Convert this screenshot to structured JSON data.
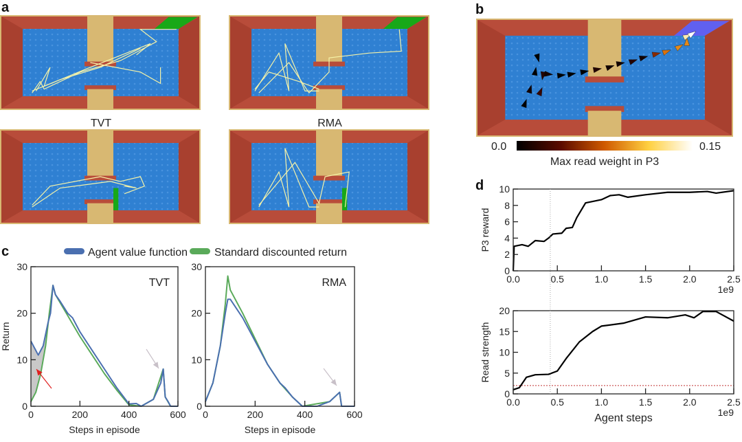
{
  "panel_a": {
    "label": "a",
    "captions": [
      "TVT",
      "RMA"
    ],
    "goal_color": "#18a818"
  },
  "panel_b": {
    "label": "b",
    "colorbar": {
      "min_label": "0.0",
      "max_label": "0.15",
      "label": "Max read weight in P3",
      "colormap": "afmhot"
    },
    "goal_color": "#6060f0"
  },
  "panel_c": {
    "label": "c",
    "legend": [
      {
        "name": "Agent value function",
        "color": "#4a6fb0"
      },
      {
        "name": "Standard discounted return",
        "color": "#5aaa5a"
      }
    ]
  },
  "panel_d": {
    "label": "d"
  },
  "chart_data": [
    {
      "type": "line",
      "panel": "c",
      "annotation": "TVT",
      "xlabel": "Steps in episode",
      "ylabel": "Return",
      "xlim": [
        0,
        600
      ],
      "ylim": [
        0,
        30
      ],
      "xticks": [
        "0",
        "200",
        "400",
        "600"
      ],
      "yticks": [
        "0",
        "10",
        "20",
        "30"
      ],
      "series": [
        {
          "name": "Agent value function",
          "color": "#4a6fb0",
          "x": [
            0,
            10,
            30,
            50,
            70,
            80,
            90,
            100,
            120,
            150,
            170,
            200,
            250,
            300,
            350,
            400,
            430,
            450,
            500,
            530,
            540,
            548,
            560,
            570,
            600
          ],
          "y": [
            14,
            13,
            11,
            13,
            18,
            20,
            26,
            24,
            22.5,
            20,
            19,
            16,
            12,
            8,
            4,
            0.5,
            0.6,
            0,
            1.5,
            5,
            8,
            2,
            1,
            0,
            0
          ]
        },
        {
          "name": "Standard discounted return",
          "color": "#5aaa5a",
          "x": [
            0,
            20,
            40,
            60,
            75,
            90,
            100,
            150,
            200,
            250,
            300,
            350,
            400,
            450,
            500,
            540,
            548,
            570,
            600
          ],
          "y": [
            1,
            3,
            7,
            13,
            20,
            26,
            24,
            19.5,
            15,
            11,
            7,
            3.5,
            0.3,
            0,
            1.5,
            8,
            2,
            0,
            0
          ]
        }
      ]
    },
    {
      "type": "line",
      "panel": "c",
      "annotation": "RMA",
      "xlabel": "Steps in episode",
      "ylabel": "",
      "xlim": [
        0,
        600
      ],
      "ylim": [
        0,
        30
      ],
      "xticks": [
        "0",
        "200",
        "400",
        "600"
      ],
      "yticks": [
        "0",
        "10",
        "20",
        "30"
      ],
      "series": [
        {
          "name": "Agent value function",
          "color": "#4a6fb0",
          "x": [
            0,
            30,
            60,
            80,
            90,
            100,
            150,
            200,
            250,
            300,
            320,
            350,
            390,
            450,
            500,
            540,
            548,
            600
          ],
          "y": [
            1,
            5,
            13,
            20,
            23,
            23,
            19,
            14,
            9,
            5,
            4,
            2,
            0,
            0,
            1,
            3,
            0,
            0
          ]
        },
        {
          "name": "Standard discounted return",
          "color": "#5aaa5a",
          "x": [
            0,
            30,
            60,
            80,
            90,
            100,
            150,
            200,
            250,
            300,
            350,
            390,
            500,
            540,
            548,
            600
          ],
          "y": [
            1,
            5,
            13,
            22,
            28,
            25,
            20,
            14.5,
            9,
            5,
            2,
            0,
            1,
            3,
            0,
            0
          ]
        }
      ]
    },
    {
      "type": "line",
      "panel": "d",
      "xlabel": "",
      "ylabel": "P3 reward",
      "xlim": [
        0,
        2.5
      ],
      "ylim": [
        0,
        10
      ],
      "x_scale_label": "1e9",
      "xticks": [
        "0.0",
        "0.5",
        "1.0",
        "1.5",
        "2.0",
        "2.5"
      ],
      "yticks": [
        "0",
        "2",
        "4",
        "6",
        "8",
        "10"
      ],
      "vline": 0.42,
      "series": [
        {
          "color": "#000000",
          "x": [
            0,
            0.01,
            0.1,
            0.17,
            0.25,
            0.35,
            0.4,
            0.45,
            0.55,
            0.6,
            0.67,
            0.72,
            0.82,
            1.0,
            1.1,
            1.2,
            1.3,
            1.5,
            1.75,
            2.0,
            2.2,
            2.3,
            2.5
          ],
          "y": [
            0,
            3,
            3.2,
            3,
            3.7,
            3.6,
            4,
            4.5,
            4.6,
            5.2,
            5.3,
            6.5,
            8.3,
            8.7,
            9.2,
            9.3,
            9,
            9.3,
            9.6,
            9.6,
            9.7,
            9.5,
            9.8
          ]
        }
      ]
    },
    {
      "type": "line",
      "panel": "d",
      "xlabel": "Agent steps",
      "ylabel": "Read strength",
      "xlim": [
        0,
        2.5
      ],
      "ylim": [
        0,
        20
      ],
      "x_scale_label": "1e9",
      "xticks": [
        "0.0",
        "0.5",
        "1.0",
        "1.5",
        "2.0",
        "2.5"
      ],
      "yticks": [
        "0",
        "5",
        "10",
        "15",
        "20"
      ],
      "vline": 0.42,
      "hline": {
        "y": 2,
        "color": "#c03030"
      },
      "series": [
        {
          "color": "#000000",
          "x": [
            0,
            0.07,
            0.15,
            0.25,
            0.4,
            0.5,
            0.6,
            0.75,
            0.9,
            1.0,
            1.25,
            1.5,
            1.75,
            1.95,
            2.05,
            2.15,
            2.3,
            2.5
          ],
          "y": [
            1,
            1.5,
            4,
            4.6,
            4.7,
            5.5,
            8.5,
            12.5,
            15,
            16.3,
            17,
            18.5,
            18.3,
            19,
            18.3,
            19.8,
            19.8,
            17.5
          ]
        }
      ]
    }
  ]
}
